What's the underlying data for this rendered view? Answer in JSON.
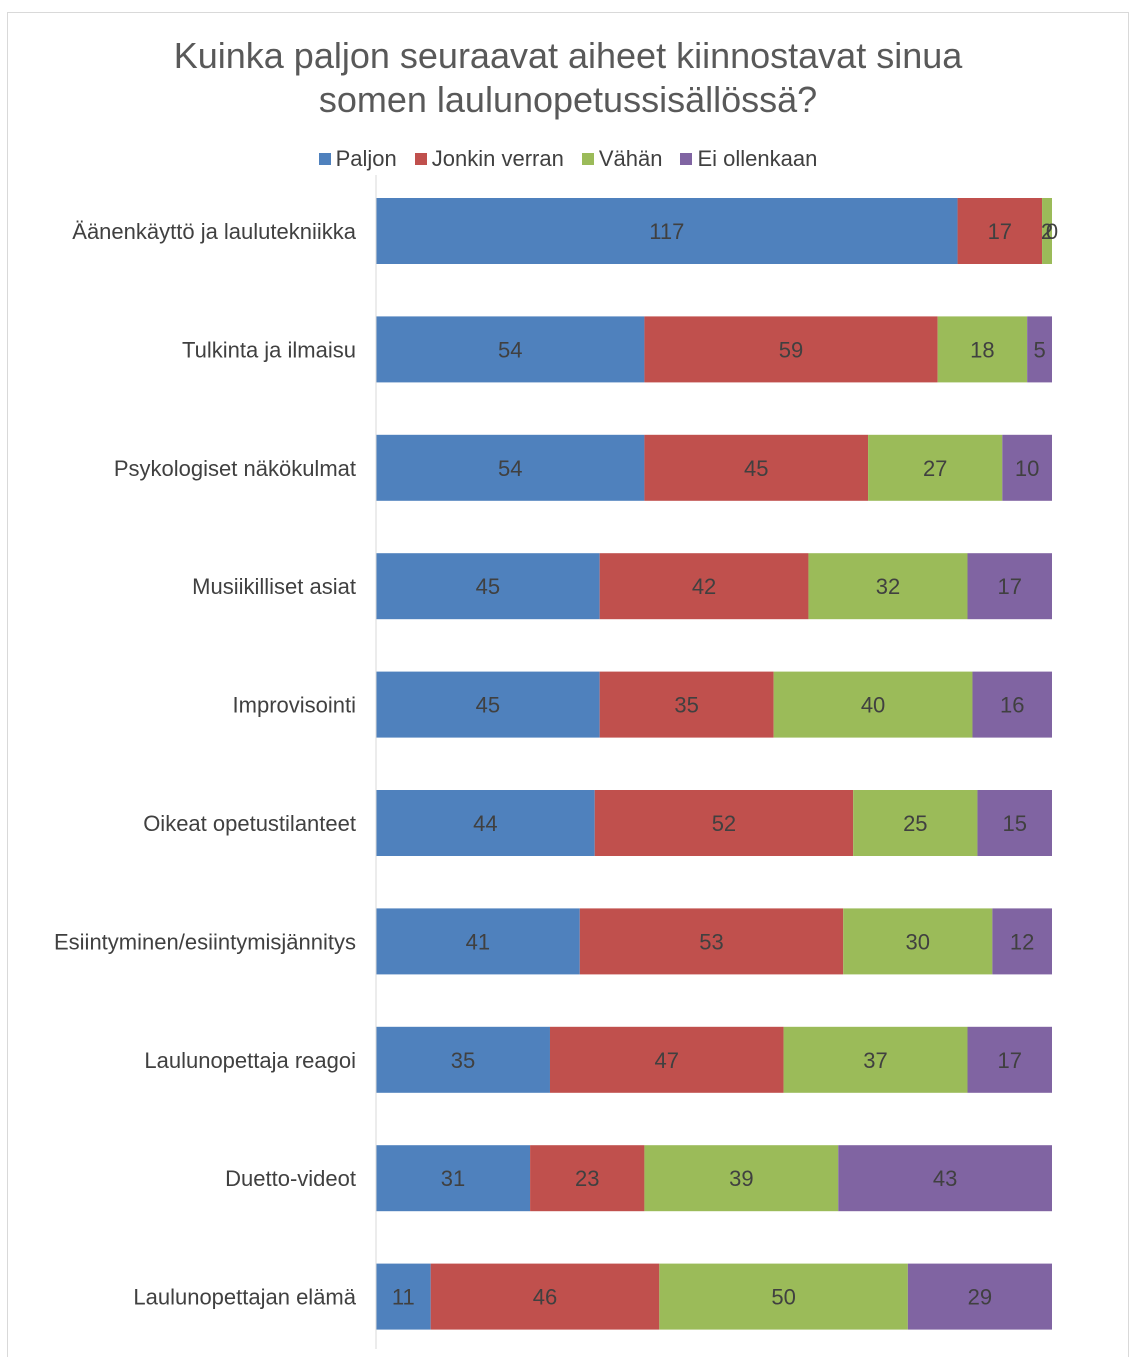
{
  "chart_data": {
    "type": "bar",
    "orientation": "horizontal",
    "stacked": true,
    "title": "Kuinka paljon seuraavat aiheet kiinnostavat sinua somen laulunopetussisällössä?",
    "title_lines": [
      "Kuinka paljon seuraavat aiheet kiinnostavat sinua",
      "somen laulunopetussisällössä?"
    ],
    "legend_position": "top",
    "grid": false,
    "categories": [
      "Äänenkäyttö ja laulutekniikka",
      "Tulkinta ja ilmaisu",
      "Psykologiset näkökulmat",
      "Musiikilliset asiat",
      "Improvisointi",
      "Oikeat opetustilanteet",
      "Esiintyminen/esiintymisjännitys",
      "Laulunopettaja reagoi",
      "Duetto-videot",
      "Laulunopettajan elämä"
    ],
    "series": [
      {
        "name": "Paljon",
        "color": "#4f81bd",
        "values": [
          117,
          54,
          54,
          45,
          45,
          44,
          41,
          35,
          31,
          11
        ]
      },
      {
        "name": "Jonkin verran",
        "color": "#c0504d",
        "values": [
          17,
          59,
          45,
          42,
          35,
          52,
          53,
          47,
          23,
          46
        ]
      },
      {
        "name": "Vähän",
        "color": "#9bbb59",
        "values": [
          2,
          18,
          27,
          32,
          40,
          25,
          30,
          37,
          39,
          50
        ]
      },
      {
        "name": "Ei ollenkaan",
        "color": "#8064a2",
        "values": [
          0,
          5,
          10,
          17,
          16,
          15,
          12,
          17,
          43,
          29
        ]
      }
    ]
  }
}
